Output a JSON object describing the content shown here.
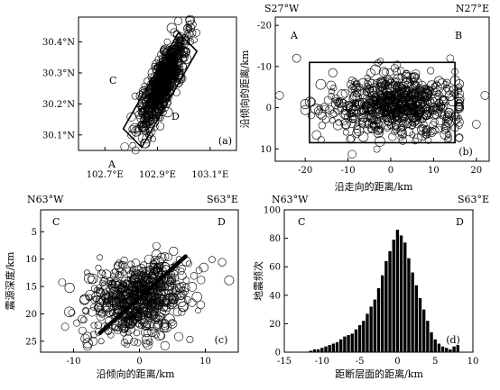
{
  "chart_data": [
    {
      "panel": "(a)",
      "type": "scatter",
      "xlabel": "",
      "ylabel": "",
      "xticks": [
        "102.7°E",
        "102.9°E",
        "103.1°E"
      ],
      "yticks": [
        "30.1°N",
        "30.2°N",
        "30.3°N",
        "30.4°N"
      ],
      "xlim": [
        102.6,
        103.2
      ],
      "ylim": [
        30.05,
        30.48
      ],
      "annotations": [
        "A",
        "B",
        "C",
        "D"
      ],
      "profile_box_corners": [
        [
          102.77,
          30.12
        ],
        [
          102.98,
          30.43
        ],
        [
          103.05,
          30.37
        ],
        [
          102.84,
          30.06
        ]
      ],
      "cluster": {
        "center": [
          102.92,
          30.27
        ],
        "axis_azimuth_deg": 27,
        "points": 700
      }
    },
    {
      "panel": "(b)",
      "type": "scatter",
      "xlabel": "沿走向的距离/km",
      "ylabel": "沿倾向的距离/km",
      "xticks": [
        "-20",
        "-10",
        "0",
        "10",
        "20"
      ],
      "yticks": [
        "-20",
        "-10",
        "0",
        "10"
      ],
      "xlim": [
        -27,
        23
      ],
      "ylim": [
        -22,
        13
      ],
      "corner_labels": {
        "left": "S27°W",
        "right": "N27°E"
      },
      "annotations": [
        "A",
        "B"
      ],
      "rect": {
        "x": [
          -19,
          15
        ],
        "y": [
          -11,
          8.5
        ]
      },
      "cluster": {
        "points": 700
      }
    },
    {
      "panel": "(c)",
      "type": "scatter",
      "xlabel": "沿倾向的距离/km",
      "ylabel": "震源深度/km",
      "xticks": [
        "-10",
        "0",
        "10"
      ],
      "yticks": [
        "5",
        "10",
        "15",
        "20",
        "25"
      ],
      "xlim": [
        -15,
        15
      ],
      "ylim": [
        1,
        27
      ],
      "corner_labels": {
        "left": "N63°W",
        "right": "S63°E"
      },
      "annotations": [
        "C",
        "D"
      ],
      "fault_line": [
        [
          -6,
          23.5
        ],
        [
          7,
          9.5
        ]
      ],
      "cluster": {
        "center": [
          0,
          17
        ],
        "points": 650
      }
    },
    {
      "panel": "(d)",
      "type": "bar",
      "xlabel": "距断层面的距离/km",
      "ylabel": "地震频次",
      "xticks": [
        "-15",
        "-10",
        "-5",
        "0",
        "5",
        "10"
      ],
      "yticks": [
        "0",
        "20",
        "40",
        "60",
        "80",
        "100"
      ],
      "xlim": [
        -15,
        10
      ],
      "ylim": [
        0,
        100
      ],
      "corner_labels": {
        "left": "N63°W",
        "right": "S63°E"
      },
      "annotations": [
        "C",
        "D"
      ],
      "bin_width": 0.5,
      "x": [
        -11.5,
        -11,
        -10.5,
        -10,
        -9.5,
        -9,
        -8.5,
        -8,
        -7.5,
        -7,
        -6.5,
        -6,
        -5.5,
        -5,
        -4.5,
        -4,
        -3.5,
        -3,
        -2.5,
        -2,
        -1.5,
        -1,
        -0.5,
        0,
        0.5,
        1,
        1.5,
        2,
        2.5,
        3,
        3.5,
        4,
        4.5,
        5,
        5.5,
        6,
        6.5,
        7,
        7.5,
        8
      ],
      "values": [
        1,
        2,
        2,
        3,
        4,
        5,
        6,
        7,
        9,
        11,
        12,
        13,
        16,
        19,
        22,
        27,
        32,
        37,
        45,
        54,
        64,
        71,
        79,
        86,
        82,
        77,
        66,
        56,
        47,
        38,
        30,
        22,
        14,
        9,
        6,
        4,
        3,
        2,
        4,
        5
      ]
    }
  ]
}
